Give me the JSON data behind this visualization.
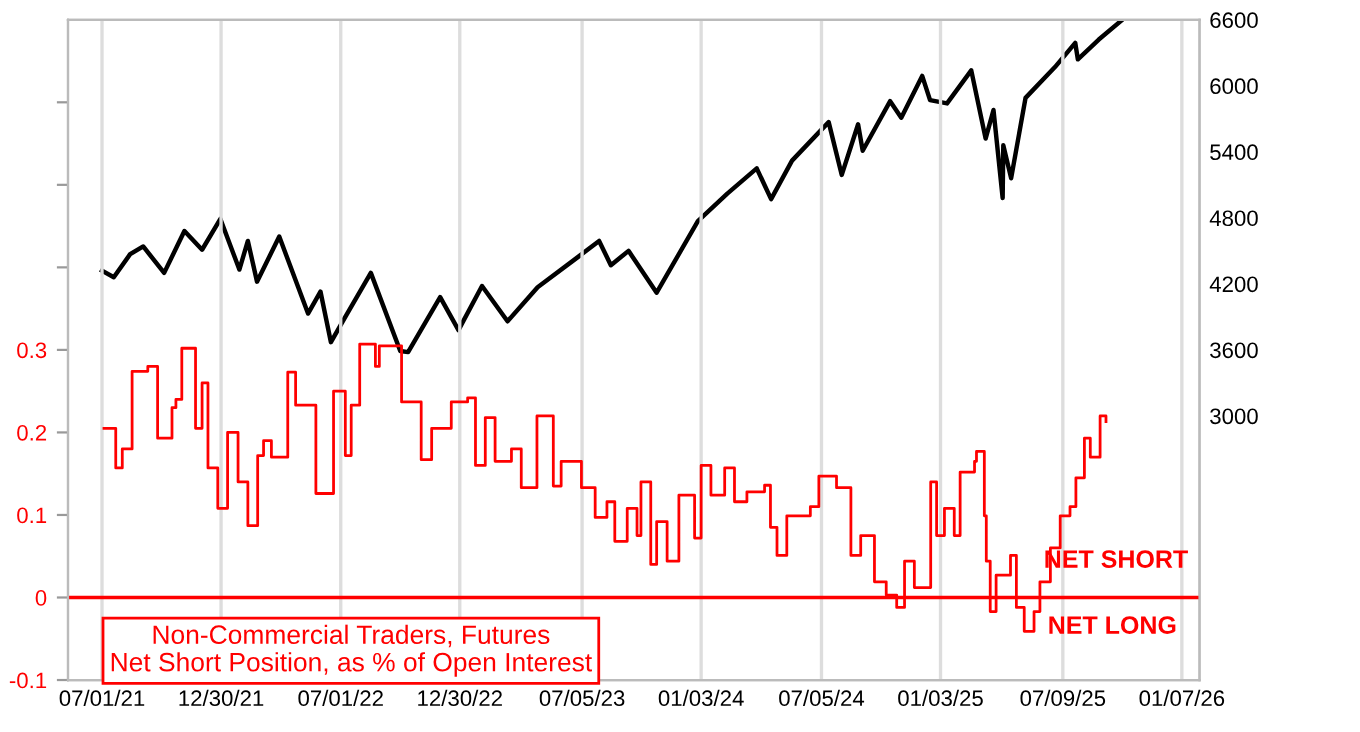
{
  "chart_data": {
    "type": "line",
    "series": [
      {
        "axis": "y2",
        "color": "#000000",
        "x": [
          "2021-07-01",
          "2021-07-19",
          "2021-08-13",
          "2021-09-02",
          "2021-10-04",
          "2021-11-04",
          "2021-12-01",
          "2021-12-29",
          "2022-01-27",
          "2022-02-09",
          "2022-02-23",
          "2022-03-29",
          "2022-05-12",
          "2022-05-31",
          "2022-06-16",
          "2022-07-08",
          "2022-08-16",
          "2022-09-30",
          "2022-10-12",
          "2022-11-30",
          "2022-12-28",
          "2023-02-02",
          "2023-03-13",
          "2023-04-28",
          "2023-06-30",
          "2023-07-31",
          "2023-08-18",
          "2023-09-14",
          "2023-10-27",
          "2023-12-29",
          "2024-02-12",
          "2024-03-28",
          "2024-04-19",
          "2024-05-21",
          "2024-07-16",
          "2024-08-05",
          "2024-08-30",
          "2024-09-06",
          "2024-10-18",
          "2024-11-04",
          "2024-12-06",
          "2024-12-18",
          "2025-01-13",
          "2025-02-19",
          "2025-03-13",
          "2025-03-25",
          "2025-04-08",
          "2025-04-09",
          "2025-04-21",
          "2025-05-13",
          "2025-06-27",
          "2025-07-28",
          "2025-08-01",
          "2025-09-02",
          "2025-10-08"
        ],
        "values": [
          4320,
          4260,
          4470,
          4540,
          4300,
          4680,
          4510,
          4790,
          4330,
          4590,
          4220,
          4630,
          3930,
          4130,
          3670,
          3900,
          4300,
          3590,
          3580,
          4080,
          3780,
          4180,
          3860,
          4170,
          4450,
          4590,
          4370,
          4500,
          4120,
          4770,
          5020,
          5250,
          4970,
          5320,
          5670,
          5190,
          5650,
          5410,
          5860,
          5710,
          6090,
          5870,
          5840,
          6140,
          5520,
          5780,
          4980,
          5460,
          5160,
          5890,
          6170,
          6390,
          6240,
          6420,
          6600
        ]
      },
      {
        "type": "step",
        "color": "#ff0000",
        "x": [
          "2021-07-04",
          "2021-07-22",
          "2021-08-01",
          "2021-08-16",
          "2021-09-09",
          "2021-09-24",
          "2021-10-16",
          "2021-10-22",
          "2021-10-31",
          "2021-11-21",
          "2021-12-01",
          "2021-12-10",
          "2021-12-25",
          "2022-01-09",
          "2022-01-25",
          "2022-02-09",
          "2022-02-24",
          "2022-03-05",
          "2022-03-17",
          "2022-04-11",
          "2022-04-23",
          "2022-05-24",
          "2022-06-20",
          "2022-07-08",
          "2022-07-17",
          "2022-07-30",
          "2022-08-23",
          "2022-08-29",
          "2022-10-02",
          "2022-11-01",
          "2022-11-17",
          "2022-12-17",
          "2023-01-11",
          "2023-01-23",
          "2023-02-07",
          "2023-02-22",
          "2023-03-19",
          "2023-04-03",
          "2023-04-27",
          "2023-05-22",
          "2023-06-03",
          "2023-07-04",
          "2023-07-25",
          "2023-08-12",
          "2023-08-24",
          "2023-09-12",
          "2023-09-27",
          "2023-10-03",
          "2023-10-18",
          "2023-10-27",
          "2023-11-12",
          "2023-11-30",
          "2023-12-03",
          "2023-12-24",
          "2024-01-03",
          "2024-01-18",
          "2024-02-08",
          "2024-02-23",
          "2024-03-13",
          "2024-04-09",
          "2024-04-18",
          "2024-04-28",
          "2024-05-13",
          "2024-06-18",
          "2024-07-01",
          "2024-07-28",
          "2024-08-19",
          "2024-09-03",
          "2024-09-24",
          "2024-10-12",
          "2024-10-28",
          "2024-11-09",
          "2024-11-24",
          "2024-12-19",
          "2024-12-28",
          "2025-01-09",
          "2025-01-24",
          "2025-02-02",
          "2025-02-24",
          "2025-02-27",
          "2025-03-11",
          "2025-03-14",
          "2025-03-20",
          "2025-03-29",
          "2025-04-20",
          "2025-04-29",
          "2025-05-11",
          "2025-05-26",
          "2025-06-04",
          "2025-06-20",
          "2025-07-05",
          "2025-07-20",
          "2025-07-29",
          "2025-08-11",
          "2025-08-20",
          "2025-09-04",
          "2025-09-13"
        ],
        "values": [
          0.205,
          0.157,
          0.18,
          0.274,
          0.28,
          0.193,
          0.23,
          0.24,
          0.302,
          0.205,
          0.26,
          0.157,
          0.108,
          0.2,
          0.14,
          0.087,
          0.172,
          0.19,
          0.17,
          0.273,
          0.233,
          0.126,
          0.25,
          0.172,
          0.233,
          0.307,
          0.28,
          0.305,
          0.237,
          0.167,
          0.205,
          0.237,
          0.242,
          0.16,
          0.218,
          0.165,
          0.18,
          0.133,
          0.22,
          0.135,
          0.165,
          0.133,
          0.097,
          0.116,
          0.068,
          0.108,
          0.075,
          0.14,
          0.04,
          0.092,
          0.044,
          0.124,
          0.124,
          0.072,
          0.16,
          0.124,
          0.157,
          0.116,
          0.128,
          0.136,
          0.085,
          0.051,
          0.099,
          0.11,
          0.147,
          0.133,
          0.051,
          0.075,
          0.019,
          0.003,
          -0.012,
          0.044,
          0.012,
          0.14,
          0.075,
          0.108,
          0.075,
          0.152,
          0.165,
          0.177,
          0.099,
          0.044,
          -0.017,
          0.027,
          0.051,
          -0.012,
          -0.041,
          -0.017,
          0.019,
          0.06,
          0.099,
          0.11,
          0.145,
          0.193,
          0.17,
          0.22,
          0.213
        ]
      }
    ],
    "xlim": [
      "2021-05-10",
      "2026-02-03"
    ],
    "xticks": [
      {
        "value": "2021-07-01",
        "label": "07/01/21"
      },
      {
        "value": "2021-12-30",
        "label": "12/30/21"
      },
      {
        "value": "2022-07-01",
        "label": "07/01/22"
      },
      {
        "value": "2022-12-30",
        "label": "12/30/22"
      },
      {
        "value": "2023-07-05",
        "label": "07/05/23"
      },
      {
        "value": "2024-01-03",
        "label": "01/03/24"
      },
      {
        "value": "2024-07-05",
        "label": "07/05/24"
      },
      {
        "value": "2025-01-03",
        "label": "01/03/25"
      },
      {
        "value": "2025-07-09",
        "label": "07/09/25"
      },
      {
        "value": "2026-01-07",
        "label": "01/07/26"
      }
    ],
    "ylim": [
      -0.1,
      0.7
    ],
    "yticks": [
      -0.1,
      0,
      0.1,
      0.2,
      0.3,
      {
        "value": 0.4,
        "label": null
      },
      {
        "value": 0.5,
        "label": null
      },
      {
        "value": 0.6,
        "label": null
      }
    ],
    "y2lim": [
      600,
      6600
    ],
    "y2ticks": [
      3000,
      3600,
      4200,
      4800,
      5400,
      6000,
      6600
    ],
    "ref_lines": [
      {
        "axis": "y",
        "value": 0,
        "color": "#ff0000"
      }
    ],
    "annotations": [
      "Non-Commercial Traders, Futures\nNet Short Position, as % of Open Interest",
      "NET SHORT",
      "NET LONG"
    ],
    "grid": "x"
  }
}
